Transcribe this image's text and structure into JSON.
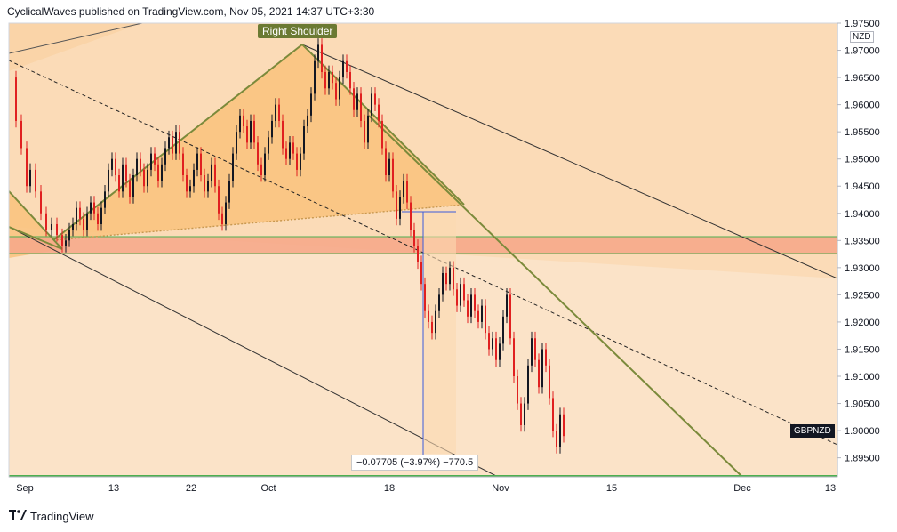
{
  "header": {
    "text": "CyclicalWaves published on TradingView.com, Nov 05, 2021 14:37 UTC+3:30"
  },
  "footer": {
    "brand": "TradingView",
    "logo_icon": "tv-logo-icon"
  },
  "annotations": {
    "right_shoulder": "Right Shoulder",
    "measure": "−0.07705 (−3.97%) −770.5",
    "symbol": "GBPNZD",
    "currency": "NZD"
  },
  "colors": {
    "background": "#fbe3c8",
    "triangle_fill": "#f9c27d",
    "zone_fill": "#f6a889",
    "trend_green": "#7b8a3b",
    "candle_up": "#131722",
    "candle_down": "#e02020"
  },
  "chart_data": {
    "type": "candlestick",
    "symbol": "GBPNZD",
    "currency": "NZD",
    "ylim": [
      1.8915,
      1.975
    ],
    "yticks": [
      "1.97500",
      "1.97000",
      "1.96500",
      "1.96000",
      "1.95500",
      "1.95000",
      "1.94500",
      "1.94000",
      "1.93500",
      "1.93000",
      "1.92500",
      "1.92000",
      "1.91500",
      "1.91000",
      "1.90500",
      "1.90000",
      "1.89500"
    ],
    "xticks": [
      "Sep",
      "13",
      "22",
      "Oct",
      "18",
      "Nov",
      "15",
      "Dec",
      "13"
    ],
    "pattern": "head-and-shoulders",
    "support_zone": [
      1.9323,
      1.9357
    ],
    "last_price": 1.8995,
    "measurement": {
      "change": -0.07705,
      "percent": -3.97,
      "pips": -770.5
    },
    "price_path": [
      [
        0,
        1.965
      ],
      [
        6,
        1.957
      ],
      [
        12,
        1.952
      ],
      [
        18,
        1.945
      ],
      [
        22,
        1.948
      ],
      [
        28,
        1.944
      ],
      [
        34,
        1.94
      ],
      [
        40,
        1.937
      ],
      [
        46,
        1.938
      ],
      [
        52,
        1.936
      ],
      [
        58,
        1.934
      ],
      [
        62,
        1.935
      ],
      [
        66,
        1.937
      ],
      [
        70,
        1.938
      ],
      [
        74,
        1.941
      ],
      [
        78,
        1.939
      ],
      [
        82,
        1.937
      ],
      [
        86,
        1.94
      ],
      [
        90,
        1.942
      ],
      [
        94,
        1.94
      ],
      [
        98,
        1.938
      ],
      [
        102,
        1.941
      ],
      [
        106,
        1.944
      ],
      [
        110,
        1.948
      ],
      [
        114,
        1.95
      ],
      [
        118,
        1.947
      ],
      [
        122,
        1.944
      ],
      [
        126,
        1.949
      ],
      [
        130,
        1.946
      ],
      [
        134,
        1.943
      ],
      [
        138,
        1.947
      ],
      [
        142,
        1.95
      ],
      [
        146,
        1.948
      ],
      [
        150,
        1.945
      ],
      [
        154,
        1.948
      ],
      [
        158,
        1.951
      ],
      [
        162,
        1.949
      ],
      [
        166,
        1.946
      ],
      [
        170,
        1.949
      ],
      [
        174,
        1.952
      ],
      [
        178,
        1.954
      ],
      [
        182,
        1.951
      ],
      [
        186,
        1.955
      ],
      [
        190,
        1.951
      ],
      [
        194,
        1.947
      ],
      [
        198,
        1.944
      ],
      [
        202,
        1.945
      ],
      [
        206,
        1.948
      ],
      [
        210,
        1.951
      ],
      [
        214,
        1.947
      ],
      [
        218,
        1.944
      ],
      [
        222,
        1.946
      ],
      [
        226,
        1.949
      ],
      [
        230,
        1.945
      ],
      [
        234,
        1.94
      ],
      [
        238,
        1.938
      ],
      [
        242,
        1.942
      ],
      [
        246,
        1.946
      ],
      [
        250,
        1.951
      ],
      [
        254,
        1.955
      ],
      [
        258,
        1.958
      ],
      [
        262,
        1.956
      ],
      [
        266,
        1.953
      ],
      [
        270,
        1.957
      ],
      [
        274,
        1.953
      ],
      [
        278,
        1.949
      ],
      [
        282,
        1.947
      ],
      [
        286,
        1.951
      ],
      [
        290,
        1.954
      ],
      [
        294,
        1.957
      ],
      [
        298,
        1.96
      ],
      [
        302,
        1.957
      ],
      [
        306,
        1.952
      ],
      [
        310,
        1.95
      ],
      [
        314,
        1.953
      ],
      [
        318,
        1.951
      ],
      [
        322,
        1.948
      ],
      [
        326,
        1.951
      ],
      [
        330,
        1.956
      ],
      [
        334,
        1.958
      ],
      [
        338,
        1.962
      ],
      [
        342,
        1.968
      ],
      [
        346,
        1.971
      ],
      [
        350,
        1.966
      ],
      [
        354,
        1.963
      ],
      [
        358,
        1.966
      ],
      [
        362,
        1.964
      ],
      [
        366,
        1.961
      ],
      [
        370,
        1.965
      ],
      [
        374,
        1.968
      ],
      [
        378,
        1.966
      ],
      [
        382,
        1.963
      ],
      [
        386,
        1.959
      ],
      [
        390,
        1.962
      ],
      [
        394,
        1.957
      ],
      [
        398,
        1.953
      ],
      [
        402,
        1.958
      ],
      [
        406,
        1.962
      ],
      [
        410,
        1.96
      ],
      [
        414,
        1.957
      ],
      [
        418,
        1.952
      ],
      [
        422,
        1.947
      ],
      [
        426,
        1.95
      ],
      [
        430,
        1.944
      ],
      [
        434,
        1.939
      ],
      [
        438,
        1.943
      ],
      [
        442,
        1.946
      ],
      [
        446,
        1.942
      ],
      [
        450,
        1.937
      ],
      [
        454,
        1.934
      ],
      [
        458,
        1.931
      ],
      [
        462,
        1.927
      ],
      [
        466,
        1.922
      ],
      [
        470,
        1.92
      ],
      [
        474,
        1.918
      ],
      [
        478,
        1.922
      ],
      [
        482,
        1.925
      ],
      [
        486,
        1.929
      ],
      [
        490,
        1.927
      ],
      [
        494,
        1.93
      ],
      [
        498,
        1.926
      ],
      [
        502,
        1.923
      ],
      [
        506,
        1.927
      ],
      [
        510,
        1.924
      ],
      [
        514,
        1.921
      ],
      [
        518,
        1.925
      ],
      [
        522,
        1.922
      ],
      [
        526,
        1.92
      ],
      [
        530,
        1.923
      ],
      [
        534,
        1.918
      ],
      [
        538,
        1.915
      ],
      [
        542,
        1.917
      ],
      [
        546,
        1.913
      ],
      [
        550,
        1.916
      ],
      [
        554,
        1.921
      ],
      [
        558,
        1.925
      ],
      [
        562,
        1.917
      ],
      [
        566,
        1.91
      ],
      [
        570,
        1.905
      ],
      [
        574,
        1.901
      ],
      [
        578,
        1.905
      ],
      [
        582,
        1.912
      ],
      [
        586,
        1.917
      ],
      [
        590,
        1.913
      ],
      [
        594,
        1.908
      ],
      [
        598,
        1.915
      ],
      [
        602,
        1.912
      ],
      [
        606,
        1.906
      ],
      [
        610,
        1.9
      ],
      [
        614,
        1.897
      ],
      [
        618,
        1.903
      ],
      [
        622,
        1.899
      ]
    ]
  }
}
